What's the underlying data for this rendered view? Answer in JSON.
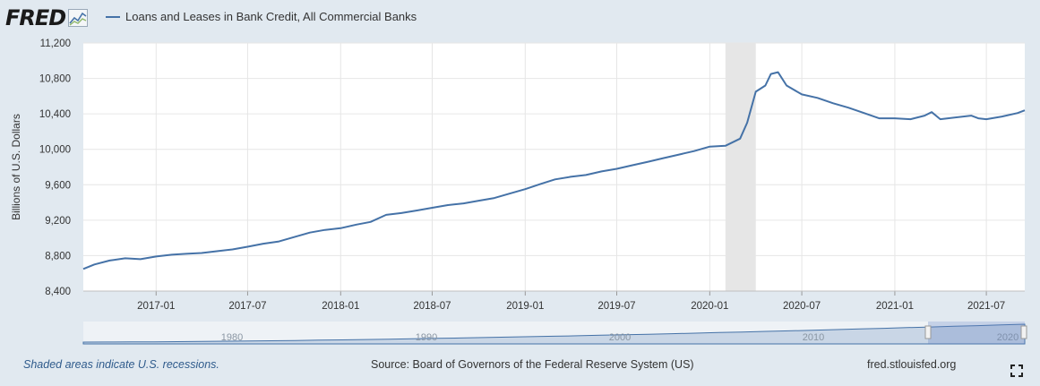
{
  "header": {
    "logo_text": "FRED",
    "series_label": "Loans and Leases in Bank Credit, All Commercial Banks"
  },
  "footer": {
    "recession_note": "Shaded areas indicate U.S. recessions.",
    "source": "Source: Board of Governors of the Federal Reserve System (US)",
    "site": "fred.stlouisfed.org"
  },
  "colors": {
    "line": "#4572a7",
    "recession": "#e6e6e6",
    "background": "#e1e9f0"
  },
  "icons": {
    "fullscreen": "fullscreen-icon",
    "logo_graph": "graph-icon"
  },
  "chart_data": {
    "type": "line",
    "title": "",
    "xlabel": "",
    "ylabel": "Billions of U.S. Dollars",
    "ylim": [
      8400,
      11200
    ],
    "yticks": [
      8400,
      8800,
      9200,
      9600,
      10000,
      10400,
      10800,
      11200
    ],
    "ytick_labels": [
      "8,400",
      "8,800",
      "9,200",
      "9,600",
      "10,000",
      "10,400",
      "10,800",
      "11,200"
    ],
    "xticks": [
      "2017-01",
      "2017-07",
      "2018-01",
      "2018-07",
      "2019-01",
      "2019-07",
      "2020-01",
      "2020-07",
      "2021-01",
      "2021-07"
    ],
    "xlim": [
      "2016-08-10",
      "2021-09-15"
    ],
    "grid": true,
    "recessions": [
      {
        "start": "2020-02-01",
        "end": "2020-04-01"
      }
    ],
    "series": [
      {
        "name": "Loans and Leases in Bank Credit, All Commercial Banks",
        "x": [
          "2016-08-10",
          "2016-09-01",
          "2016-10-01",
          "2016-11-01",
          "2016-12-01",
          "2017-01-01",
          "2017-02-01",
          "2017-03-01",
          "2017-04-01",
          "2017-05-01",
          "2017-06-01",
          "2017-07-01",
          "2017-08-01",
          "2017-09-01",
          "2017-10-01",
          "2017-11-01",
          "2017-12-01",
          "2018-01-01",
          "2018-02-01",
          "2018-03-01",
          "2018-04-01",
          "2018-05-01",
          "2018-06-01",
          "2018-07-01",
          "2018-08-01",
          "2018-09-01",
          "2018-10-01",
          "2018-11-01",
          "2018-12-01",
          "2019-01-01",
          "2019-02-01",
          "2019-03-01",
          "2019-04-01",
          "2019-05-01",
          "2019-06-01",
          "2019-07-01",
          "2019-08-01",
          "2019-09-01",
          "2019-10-01",
          "2019-11-01",
          "2019-12-01",
          "2020-01-01",
          "2020-02-01",
          "2020-03-01",
          "2020-03-15",
          "2020-04-01",
          "2020-04-20",
          "2020-05-01",
          "2020-05-15",
          "2020-06-01",
          "2020-07-01",
          "2020-08-01",
          "2020-09-01",
          "2020-10-01",
          "2020-11-01",
          "2020-12-01",
          "2021-01-01",
          "2021-02-01",
          "2021-03-01",
          "2021-03-15",
          "2021-04-01",
          "2021-05-01",
          "2021-06-01",
          "2021-06-15",
          "2021-07-01",
          "2021-08-01",
          "2021-09-01",
          "2021-09-15"
        ],
        "values": [
          8650,
          8700,
          8745,
          8770,
          8760,
          8790,
          8810,
          8820,
          8830,
          8850,
          8870,
          8900,
          8935,
          8960,
          9010,
          9060,
          9090,
          9110,
          9150,
          9180,
          9260,
          9280,
          9310,
          9340,
          9370,
          9390,
          9420,
          9450,
          9500,
          9550,
          9610,
          9660,
          9690,
          9710,
          9750,
          9780,
          9820,
          9860,
          9900,
          9940,
          9980,
          10030,
          10040,
          10120,
          10300,
          10650,
          10720,
          10850,
          10870,
          10720,
          10620,
          10580,
          10520,
          10470,
          10410,
          10350,
          10350,
          10340,
          10380,
          10420,
          10340,
          10360,
          10380,
          10350,
          10340,
          10370,
          10410,
          10440
        ]
      }
    ],
    "navigator": {
      "labels": [
        "1980",
        "1990",
        "2000",
        "2010",
        "2020"
      ]
    }
  }
}
